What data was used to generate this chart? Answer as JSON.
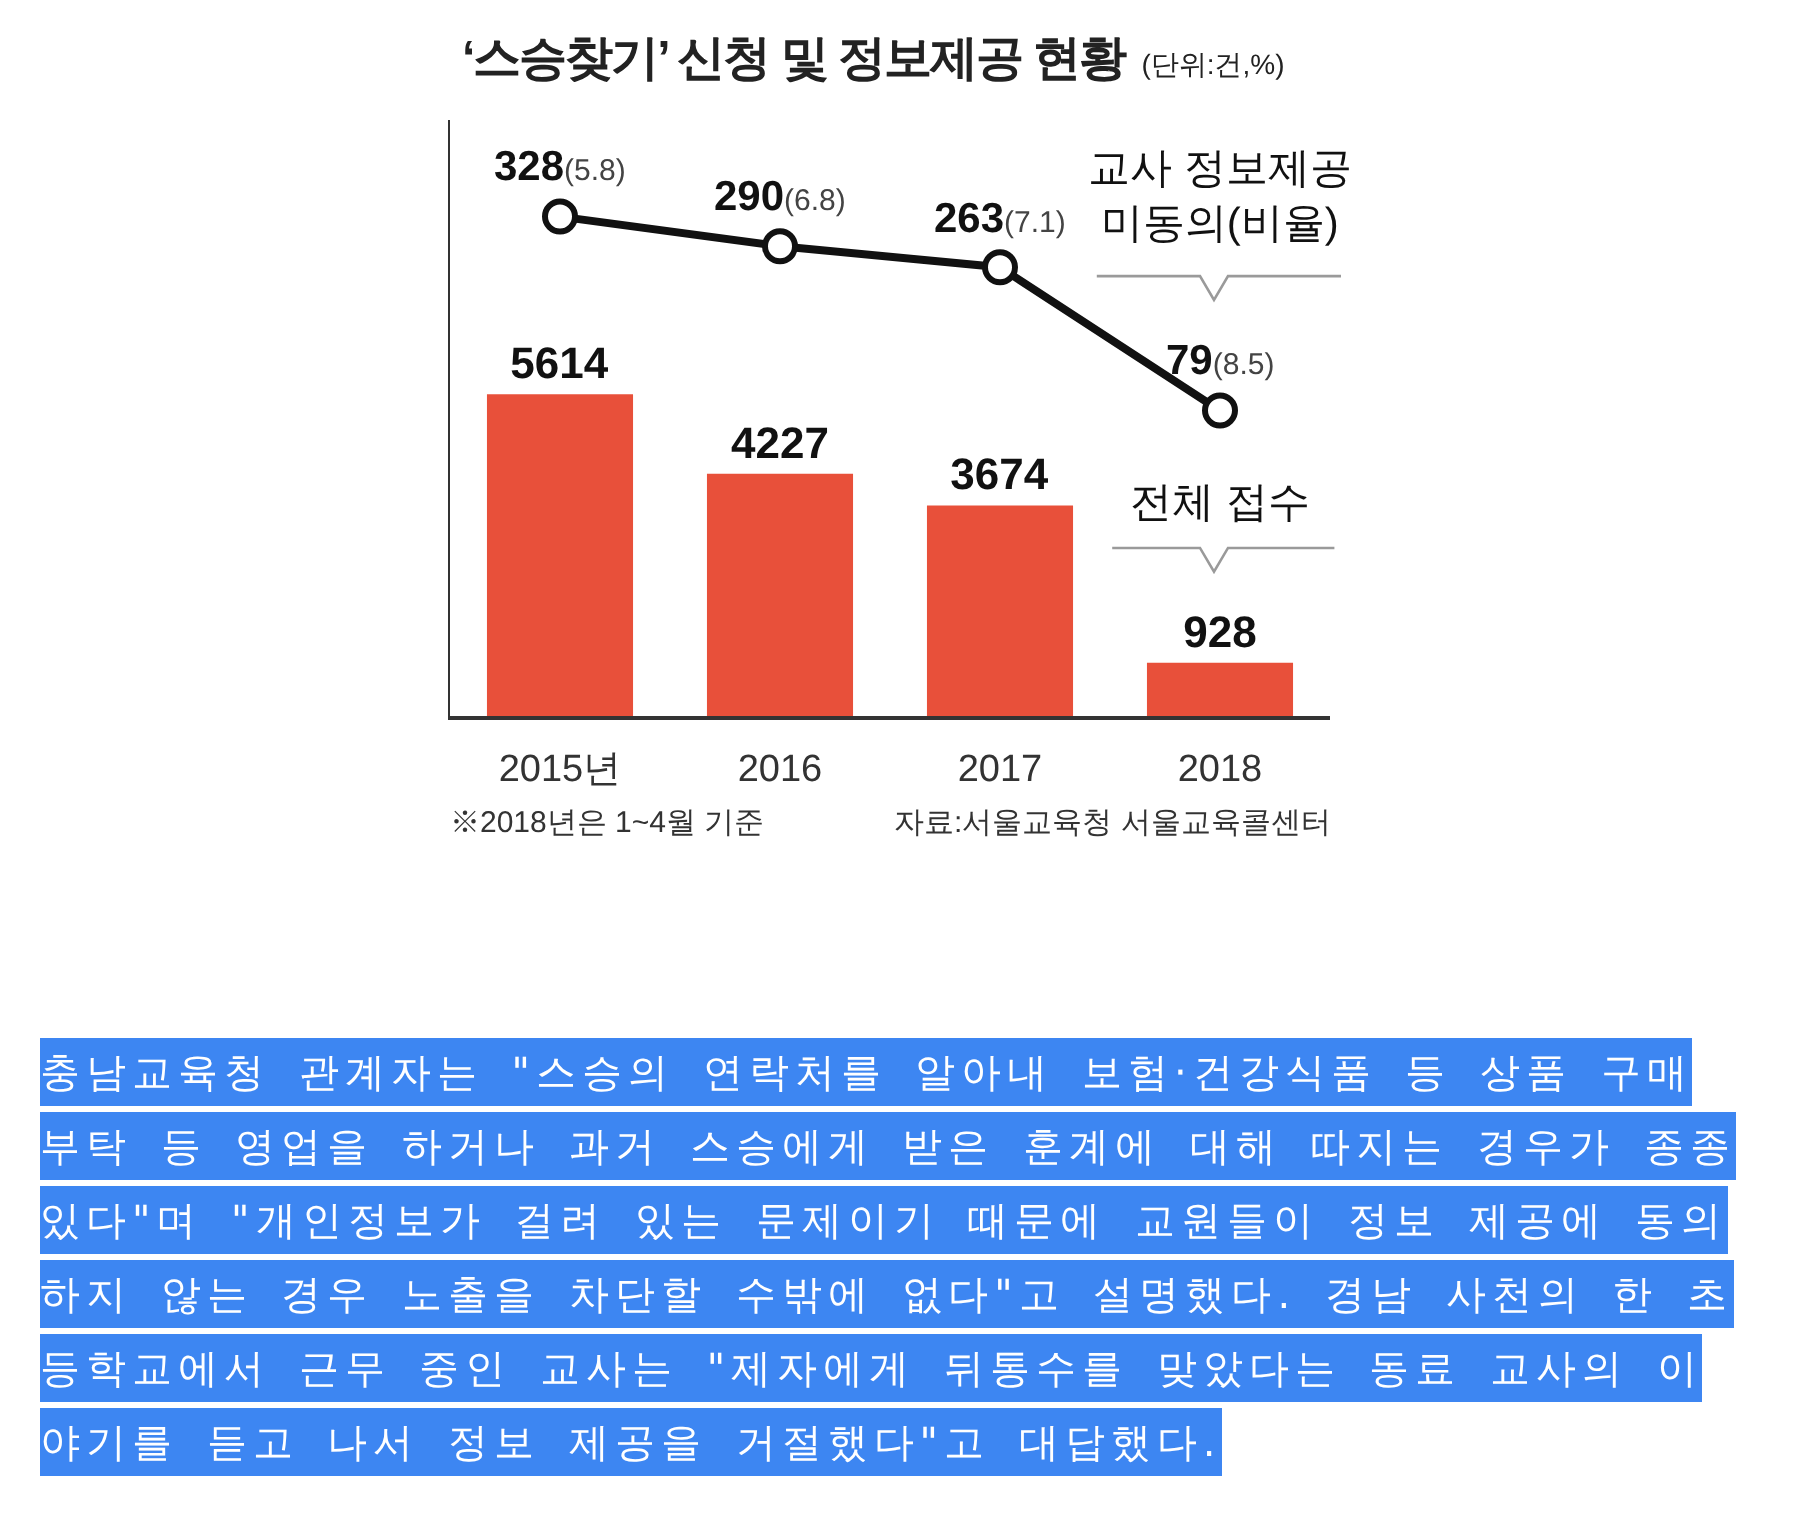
{
  "chart_data": {
    "type": "bar",
    "title": "‘스승찾기’ 신청 및 정보제공 현황",
    "subtitle": "(단위:건,%)",
    "categories": [
      "2015년",
      "2016",
      "2017",
      "2018"
    ],
    "series": [
      {
        "name": "전체 접수",
        "color": "#e8503a",
        "values": [
          5614,
          4227,
          3674,
          928
        ],
        "value_labels": [
          "5614",
          "4227",
          "3674",
          "928"
        ]
      },
      {
        "name": "교사 정보제공 미동의(비율)",
        "type": "line",
        "axis": "y2",
        "color": "#111111",
        "values": [
          328,
          290,
          263,
          79
        ],
        "value_labels": [
          "328(5.8)",
          "290(6.8)",
          "263(7.1)",
          "79(8.5)"
        ]
      }
    ],
    "ylim": [
      0,
      10400
    ],
    "y2lim": [
      -313,
      452
    ],
    "marker": "circle",
    "line_style": "solid",
    "grid": false,
    "legend": false,
    "tick_labels": "x",
    "annotations": [
      "※2018년은 1~4월 기준",
      "자료:서울교육청 서울교육콜센터",
      "충남교육청 관계자는 \"스승의 연락처를 알아내 보험·건강식품 등 상품 구매 부탁 등 영업을 하거나 과거 스승에게 받은 훈계에 대해 따지는 경우가 종종 있다\"며 \"개인정보가 걸려 있는 문제이기 때문에 교원들이 정보 제공에 동의하지 않는 경우 노출을 차단할 수밖에 없다\"고 설명했다. 경남 사천의 한 초등학교에서 근무 중인 교사는 \"제자에게 뒤통수를 맞았다는 동료 교사의 이야기를 듣고 나서 정보 제공을 거절했다\"고 대답했다."
    ]
  }
}
